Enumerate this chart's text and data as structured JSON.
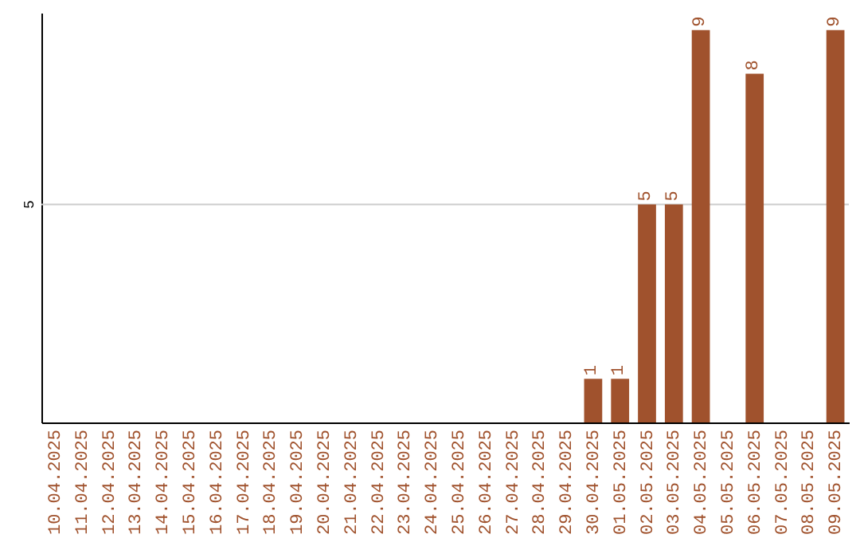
{
  "chart_data": {
    "type": "bar",
    "categories": [
      "10.04.2025",
      "11.04.2025",
      "12.04.2025",
      "13.04.2025",
      "14.04.2025",
      "15.04.2025",
      "16.04.2025",
      "17.04.2025",
      "18.04.2025",
      "19.04.2025",
      "20.04.2025",
      "21.04.2025",
      "22.04.2025",
      "23.04.2025",
      "24.04.2025",
      "25.04.2025",
      "26.04.2025",
      "27.04.2025",
      "28.04.2025",
      "29.04.2025",
      "30.04.2025",
      "01.05.2025",
      "02.05.2025",
      "03.05.2025",
      "04.05.2025",
      "05.05.2025",
      "06.05.2025",
      "07.05.2025",
      "08.05.2025",
      "09.05.2025"
    ],
    "values": [
      null,
      null,
      null,
      null,
      null,
      null,
      null,
      null,
      null,
      null,
      null,
      null,
      null,
      null,
      null,
      null,
      null,
      null,
      null,
      null,
      1,
      1,
      5,
      5,
      9,
      null,
      8,
      null,
      null,
      9
    ],
    "value_labels": [
      null,
      null,
      null,
      null,
      null,
      null,
      null,
      null,
      null,
      null,
      null,
      null,
      null,
      null,
      null,
      null,
      null,
      null,
      null,
      null,
      "1",
      "1",
      "5",
      "5",
      "9",
      null,
      "8",
      null,
      null,
      "9"
    ],
    "color": "#a0522d",
    "ylim": [
      0,
      9.4
    ],
    "ref_lines": [
      {
        "axis": "y",
        "value": 5,
        "label": "5",
        "color": "#cccccc"
      }
    ]
  }
}
